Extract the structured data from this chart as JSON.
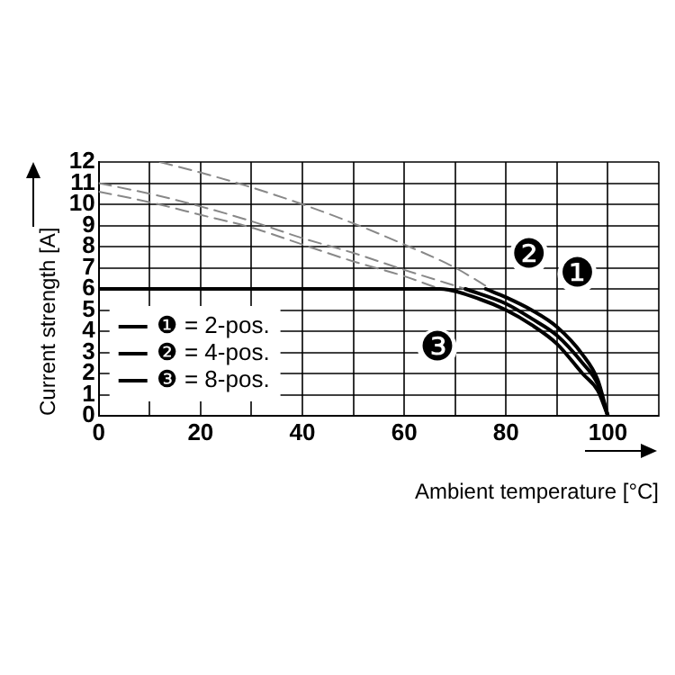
{
  "chart_data": {
    "type": "line",
    "xlabel": "Ambient temperature [°C]",
    "ylabel": "Current strength [A]",
    "xlim": [
      0,
      110
    ],
    "ylim": [
      0,
      12
    ],
    "xticks": [
      0,
      {
        "value": 10,
        "label": null
      },
      20,
      {
        "value": 30,
        "label": null
      },
      40,
      {
        "value": 50,
        "label": null
      },
      60,
      {
        "value": 70,
        "label": null
      },
      80,
      {
        "value": 90,
        "label": null
      },
      100,
      {
        "value": 110,
        "label": null
      }
    ],
    "yticks": [
      0,
      1,
      2,
      3,
      4,
      5,
      6,
      7,
      8,
      9,
      10,
      11,
      12
    ],
    "grid": true,
    "legend": "bottom left",
    "marker": "none",
    "line_style": "solid",
    "series": [
      {
        "name": "❶ = 2-pos.",
        "color": "#000000",
        "x": [
          76,
          80,
          85,
          90,
          95,
          98,
          100
        ],
        "values": [
          6,
          5.6,
          5,
          4.2,
          2.9,
          1.7,
          0
        ]
      },
      {
        "name": "❷ = 4-pos.",
        "color": "#000000",
        "x": [
          72,
          80,
          85,
          90,
          95,
          98,
          100
        ],
        "values": [
          6,
          5.3,
          4.6,
          3.8,
          2.5,
          1.5,
          0
        ]
      },
      {
        "name": "❸ = 8-pos.",
        "color": "#000000",
        "x": [
          0,
          67,
          75,
          80,
          85,
          90,
          95,
          98,
          100
        ],
        "values": [
          6,
          6,
          5.5,
          5,
          4.3,
          3.4,
          2,
          1.2,
          0
        ]
      },
      {
        "color": "#888888",
        "line_style": "dashed",
        "x": [
          12,
          20,
          30,
          40,
          50,
          60,
          70,
          77
        ],
        "values": [
          12,
          11.5,
          10.8,
          10,
          9.1,
          8.1,
          7,
          6
        ]
      },
      {
        "color": "#888888",
        "line_style": "dashed",
        "x": [
          0,
          10,
          20,
          30,
          40,
          50,
          60,
          72
        ],
        "values": [
          11,
          10.5,
          9.9,
          9.2,
          8.4,
          7.7,
          6.9,
          6
        ]
      },
      {
        "color": "#888888",
        "line_style": "dashed",
        "x": [
          0,
          10,
          20,
          30,
          40,
          50,
          60,
          67
        ],
        "values": [
          10.6,
          10.1,
          9.5,
          8.9,
          8.1,
          7.3,
          6.6,
          6
        ]
      }
    ],
    "annotations": [
      {
        "text": "❶",
        "x": 94,
        "y": 6.7
      },
      {
        "text": "❷",
        "x": 84.5,
        "y": 7.6
      },
      {
        "text": "❸",
        "x": 66.5,
        "y": 3.2
      }
    ]
  }
}
